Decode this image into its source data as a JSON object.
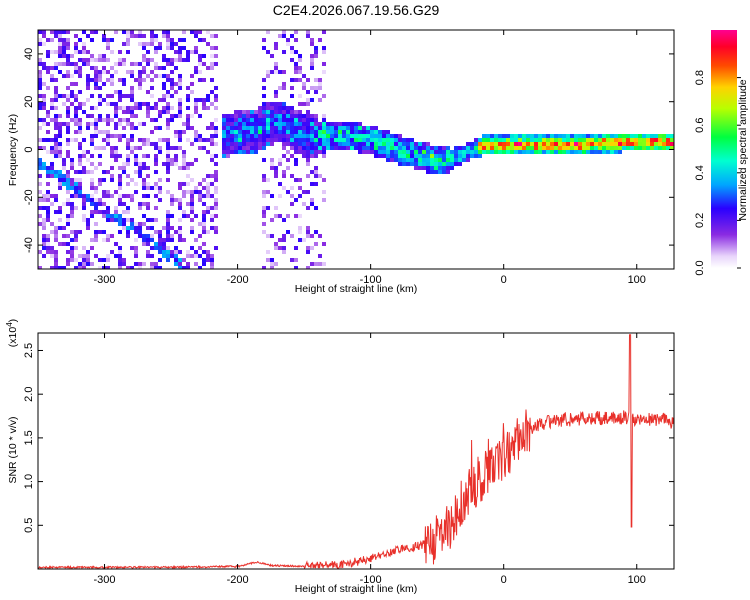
{
  "title": "C2E4.2026.067.19.56.G29",
  "chart_data": [
    {
      "type": "heatmap",
      "xlabel": "Height of straight line (km)",
      "ylabel": "Frequency (Hz)",
      "xlim": [
        -350,
        128
      ],
      "ylim": [
        -50,
        50
      ],
      "xticks": [
        -300,
        -200,
        -100,
        0,
        100
      ],
      "yticks": [
        -40,
        -20,
        0,
        20,
        40
      ],
      "colorbar": {
        "label": "Normalized spectral amplitude",
        "range": [
          0,
          1
        ],
        "ticks": [
          "0.0",
          "0.2",
          "0.4",
          "0.6",
          "0.8"
        ],
        "colormap": "rainbow (white-violet-blue-cyan-green-yellow-red-magenta)"
      },
      "features": {
        "signal_track": [
          [
            -210,
            6
          ],
          [
            -185,
            8
          ],
          [
            -170,
            12
          ],
          [
            -150,
            6
          ],
          [
            -120,
            6
          ],
          [
            -100,
            4
          ],
          [
            -80,
            0
          ],
          [
            -60,
            -3
          ],
          [
            -45,
            -5
          ],
          [
            -30,
            -2
          ],
          [
            -15,
            2
          ],
          [
            0,
            2
          ],
          [
            20,
            2
          ],
          [
            60,
            2
          ],
          [
            90,
            3
          ],
          [
            110,
            3
          ],
          [
            128,
            3
          ]
        ],
        "diagonal_trace": [
          [
            -350,
            -5
          ],
          [
            -290,
            -25
          ],
          [
            -250,
            -45
          ]
        ]
      }
    },
    {
      "type": "line",
      "xlabel": "Height of straight line (km)",
      "ylabel": "SNR (10 * v/v)",
      "yscale_label": "(x10",
      "yscale_exponent": "4",
      "xlim": [
        -350,
        128
      ],
      "ylim": [
        0,
        2.7
      ],
      "xticks": [
        -300,
        -200,
        -100,
        0,
        100
      ],
      "yticks": [
        "0.5",
        "1.0",
        "1.5",
        "2.0",
        "2.5"
      ],
      "color": "#e8302a",
      "series": [
        {
          "x": [
            -350,
            -300,
            -250,
            -200,
            -185,
            -175,
            -150,
            -120,
            -100,
            -80,
            -60,
            -50,
            -40,
            -30,
            -20,
            -10,
            0,
            10,
            20,
            30,
            40,
            50,
            60,
            70,
            80,
            90,
            95,
            100,
            110,
            120,
            128
          ],
          "y": [
            0.02,
            0.02,
            0.02,
            0.03,
            0.08,
            0.04,
            0.03,
            0.05,
            0.12,
            0.22,
            0.28,
            0.35,
            0.45,
            0.8,
            1.0,
            1.15,
            1.28,
            1.45,
            1.6,
            1.67,
            1.7,
            1.71,
            1.72,
            1.73,
            1.72,
            1.74,
            1.72,
            1.7,
            1.72,
            1.7,
            1.68
          ]
        }
      ]
    }
  ],
  "labels": {
    "top_xlabel": "Height of straight line (km)",
    "top_ylabel": "Frequency (Hz)",
    "bottom_xlabel": "Height of straight line (km)",
    "bottom_ylabel": "SNR (10 * v/v)",
    "scale_prefix": "(x10",
    "scale_exp": "4",
    "scale_suffix": ")",
    "cbar_label": "Normalized spectral amplitude"
  }
}
